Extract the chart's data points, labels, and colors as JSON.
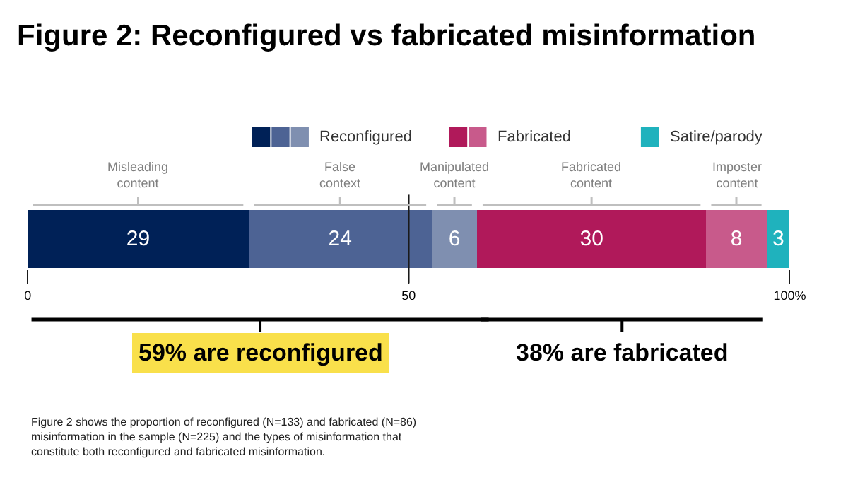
{
  "chart_data": {
    "type": "bar",
    "orientation": "horizontal",
    "stacked": true,
    "title": "Figure 2: Reconfigured vs fabricated misinformation",
    "categories": [
      null
    ],
    "series": [
      {
        "name": "Misleading content",
        "color": "#002157",
        "values": [
          29
        ]
      },
      {
        "name": "False context",
        "color": "#4d6394",
        "values": [
          24
        ]
      },
      {
        "name": "Manipulated content",
        "color": "#7f8fb0",
        "values": [
          6
        ]
      },
      {
        "name": "Fabricated content",
        "color": "#b0195a",
        "values": [
          30
        ]
      },
      {
        "name": "Imposter content",
        "color": "#c85a8b",
        "values": [
          8
        ]
      },
      {
        "name": "Satire/parody",
        "color": "#1fb2bd",
        "values": [
          3
        ]
      }
    ],
    "data_labels": true,
    "xlim": [
      0,
      100
    ],
    "xticks": [
      0,
      50,
      {
        "value": 100,
        "label": "100%"
      }
    ],
    "ref_lines": [
      {
        "axis": "x",
        "value": 50,
        "color": "#1a1a1a"
      }
    ],
    "legend": "top",
    "annotations": [
      "Reconfigured",
      "Fabricated",
      "59% are reconfigured",
      "38% are fabricated",
      "Figure 2 shows the proportion of reconfigured (N=133) and fabricated (N=86) misinformation in the sample (N=225) and the types of misinformation that constitute both reconfigured and fabricated misinformation."
    ]
  }
}
